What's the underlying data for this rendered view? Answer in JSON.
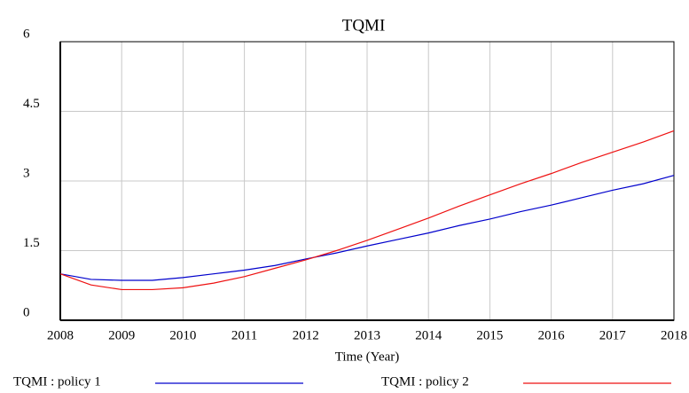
{
  "chart_data": {
    "type": "line",
    "title": "TQMI",
    "xlabel": "Time (Year)",
    "x": [
      2008,
      2008.5,
      2009,
      2009.5,
      2010,
      2010.5,
      2011,
      2011.5,
      2012,
      2012.5,
      2013,
      2013.5,
      2014,
      2014.5,
      2015,
      2015.5,
      2016,
      2016.5,
      2017,
      2017.5,
      2018
    ],
    "series": [
      {
        "name": "TQMI : policy 1",
        "color": "#0000cc",
        "values": [
          1.0,
          0.88,
          0.86,
          0.86,
          0.92,
          1.0,
          1.08,
          1.18,
          1.32,
          1.45,
          1.6,
          1.74,
          1.88,
          2.04,
          2.18,
          2.34,
          2.48,
          2.64,
          2.8,
          2.94,
          3.12
        ]
      },
      {
        "name": "TQMI : policy 2",
        "color": "#ee1111",
        "values": [
          1.0,
          0.76,
          0.66,
          0.66,
          0.7,
          0.8,
          0.94,
          1.12,
          1.3,
          1.5,
          1.72,
          1.96,
          2.2,
          2.46,
          2.7,
          2.94,
          3.16,
          3.4,
          3.62,
          3.84,
          4.08
        ]
      }
    ],
    "xlim": [
      2008,
      2018
    ],
    "xticks": [
      2008,
      2009,
      2010,
      2011,
      2012,
      2013,
      2014,
      2015,
      2016,
      2017,
      2018
    ],
    "ylim": [
      0,
      6
    ],
    "yticks": [
      0,
      1.5,
      3,
      4.5,
      6
    ],
    "grid": true
  }
}
